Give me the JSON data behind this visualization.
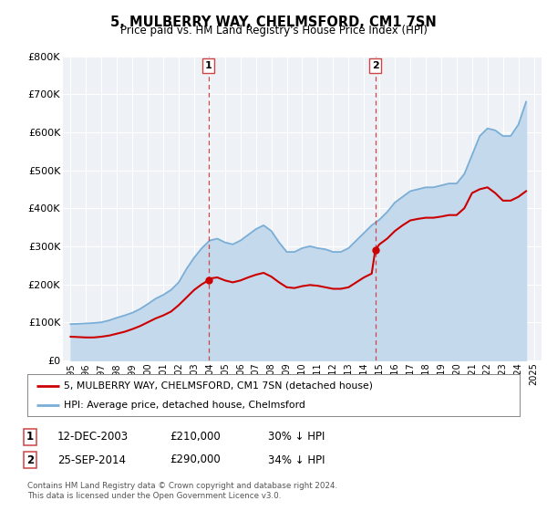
{
  "title": "5, MULBERRY WAY, CHELMSFORD, CM1 7SN",
  "subtitle": "Price paid vs. HM Land Registry's House Price Index (HPI)",
  "legend_line1": "5, MULBERRY WAY, CHELMSFORD, CM1 7SN (detached house)",
  "legend_line2": "HPI: Average price, detached house, Chelmsford",
  "sale1_date": "12-DEC-2003",
  "sale1_price": "£210,000",
  "sale1_pct": "30% ↓ HPI",
  "sale2_date": "25-SEP-2014",
  "sale2_price": "£290,000",
  "sale2_pct": "34% ↓ HPI",
  "footer": "Contains HM Land Registry data © Crown copyright and database right 2024.\nThis data is licensed under the Open Government Licence v3.0.",
  "red_color": "#cc0000",
  "blue_color": "#7aaed6",
  "blue_fill_color": "#c5d9ed",
  "dashed_color": "#cc4444",
  "background_color": "#ffffff",
  "plot_bg_color": "#eef2f7",
  "ylim": [
    0,
    800000
  ],
  "yticks": [
    0,
    100000,
    200000,
    300000,
    400000,
    500000,
    600000,
    700000,
    800000
  ],
  "ytick_labels": [
    "£0",
    "£100K",
    "£200K",
    "£300K",
    "£400K",
    "£500K",
    "£600K",
    "£700K",
    "£800K"
  ],
  "sale1_year": 2003.92,
  "sale2_year": 2014.73,
  "sale1_price_val": 210000,
  "sale2_price_val": 290000,
  "years_hpi": [
    1995,
    1995.5,
    1996,
    1996.5,
    1997,
    1997.5,
    1998,
    1998.5,
    1999,
    1999.5,
    2000,
    2000.5,
    2001,
    2001.5,
    2002,
    2002.5,
    2003,
    2003.5,
    2004,
    2004.5,
    2005,
    2005.5,
    2006,
    2006.5,
    2007,
    2007.5,
    2008,
    2008.5,
    2009,
    2009.5,
    2010,
    2010.5,
    2011,
    2011.5,
    2012,
    2012.5,
    2013,
    2013.5,
    2014,
    2014.5,
    2015,
    2015.5,
    2016,
    2016.5,
    2017,
    2017.5,
    2018,
    2018.5,
    2019,
    2019.5,
    2020,
    2020.5,
    2021,
    2021.5,
    2022,
    2022.5,
    2023,
    2023.5,
    2024,
    2024.5
  ],
  "hpi_values": [
    95000,
    96000,
    97000,
    98000,
    100000,
    105000,
    112000,
    118000,
    125000,
    135000,
    148000,
    162000,
    172000,
    185000,
    205000,
    240000,
    270000,
    295000,
    315000,
    320000,
    310000,
    305000,
    315000,
    330000,
    345000,
    355000,
    340000,
    310000,
    285000,
    285000,
    295000,
    300000,
    295000,
    292000,
    285000,
    285000,
    295000,
    315000,
    335000,
    355000,
    370000,
    390000,
    415000,
    430000,
    445000,
    450000,
    455000,
    455000,
    460000,
    465000,
    465000,
    490000,
    540000,
    590000,
    610000,
    605000,
    590000,
    590000,
    620000,
    680000
  ],
  "years_red": [
    1995,
    1995.5,
    1996,
    1996.5,
    1997,
    1997.5,
    1998,
    1998.5,
    1999,
    1999.5,
    2000,
    2000.5,
    2001,
    2001.5,
    2002,
    2002.5,
    2003,
    2003.5,
    2003.92,
    2004,
    2004.5,
    2005,
    2005.5,
    2006,
    2006.5,
    2007,
    2007.5,
    2008,
    2008.5,
    2009,
    2009.5,
    2010,
    2010.5,
    2011,
    2011.5,
    2012,
    2012.5,
    2013,
    2013.5,
    2014,
    2014.5,
    2014.73,
    2015,
    2015.5,
    2016,
    2016.5,
    2017,
    2017.5,
    2018,
    2018.5,
    2019,
    2019.5,
    2020,
    2020.5,
    2021,
    2021.5,
    2022,
    2022.5,
    2023,
    2023.5,
    2024,
    2024.5
  ],
  "red_values": [
    62000,
    61000,
    60000,
    60000,
    62000,
    65000,
    70000,
    75000,
    82000,
    90000,
    100000,
    110000,
    118000,
    128000,
    145000,
    165000,
    185000,
    200000,
    210000,
    215000,
    218000,
    210000,
    205000,
    210000,
    218000,
    225000,
    230000,
    220000,
    205000,
    192000,
    190000,
    195000,
    198000,
    196000,
    192000,
    188000,
    188000,
    192000,
    205000,
    218000,
    228000,
    290000,
    305000,
    320000,
    340000,
    355000,
    368000,
    372000,
    375000,
    375000,
    378000,
    382000,
    382000,
    400000,
    440000,
    450000,
    455000,
    440000,
    420000,
    420000,
    430000,
    445000
  ]
}
